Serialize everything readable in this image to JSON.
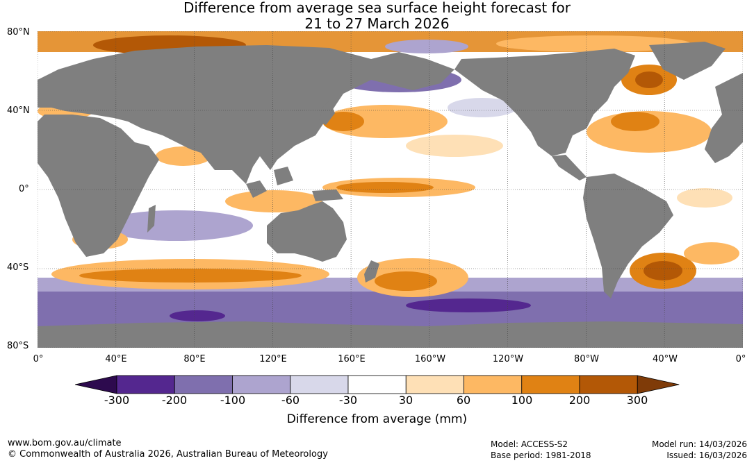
{
  "title_line1": "Difference from average sea surface height forecast for",
  "title_line2": "21 to 27 March 2026",
  "lat_labels": [
    "80°N",
    "40°N",
    "0°",
    "40°S",
    "80°S"
  ],
  "lon_labels": [
    "0°",
    "40°E",
    "80°E",
    "120°E",
    "160°E",
    "160°W",
    "120°W",
    "80°W",
    "40°W",
    "0°"
  ],
  "colorbar": {
    "ticks": [
      "-300",
      "-200",
      "-100",
      "-60",
      "-30",
      "30",
      "60",
      "100",
      "200",
      "300"
    ],
    "colors": [
      "#2d0a4e",
      "#54278f",
      "#7f6fae",
      "#ada4cf",
      "#d8d8ea",
      "#ffffff",
      "#fee0b6",
      "#fdb863",
      "#e08214",
      "#b35806",
      "#7f3b08"
    ],
    "label": "Difference from average (mm)"
  },
  "colors": {
    "land": "#7f7f7f",
    "ocean": "#ffffff",
    "ice": "#f7f7f7"
  },
  "footer": {
    "website": "www.bom.gov.au/climate",
    "copyright": "© Commonwealth of Australia 2026, Australian Bureau of Meteorology",
    "model": "Model: ACCESS-S2",
    "base_period": "Base period: 1981-2018",
    "model_run": "Model run: 14/03/2026",
    "issued": "Issued: 16/03/2026"
  }
}
